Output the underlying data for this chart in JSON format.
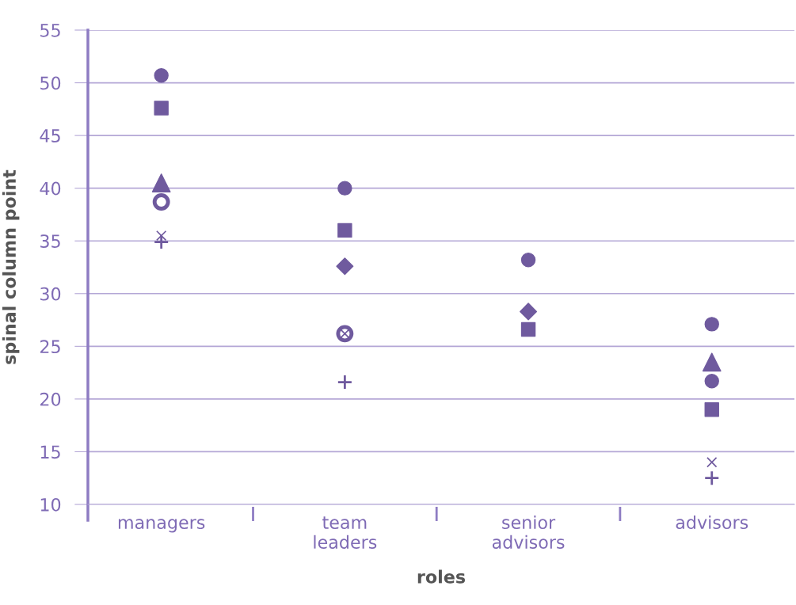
{
  "chart_data": {
    "type": "scatter",
    "xlabel": "roles",
    "ylabel": "spinal column point",
    "categories": [
      "managers",
      "team\nleaders",
      "senior\nadvisors",
      "advisors"
    ],
    "series": [
      {
        "color": "#6f5a9e",
        "marker": "circle",
        "values": [
          50.7,
          40.0,
          33.2,
          27.1
        ]
      },
      {
        "color": "#6f5a9e",
        "marker": "square",
        "values": [
          47.6,
          36.0,
          26.6,
          19.0
        ]
      },
      {
        "color": "#6f5a9e",
        "marker": "triangle",
        "values": [
          40.5,
          null,
          null,
          23.5
        ]
      },
      {
        "color": "#6f5a9e",
        "marker": "diamond",
        "values": [
          null,
          32.6,
          28.3,
          null
        ]
      },
      {
        "color": "#6f5a9e",
        "marker": "o",
        "values": [
          38.7,
          26.2,
          null,
          null
        ]
      },
      {
        "color": "#6f5a9e",
        "marker": "x",
        "values": [
          35.5,
          26.2,
          null,
          14.0
        ]
      },
      {
        "color": "#6f5a9e",
        "marker": "plus",
        "values": [
          34.9,
          21.6,
          null,
          12.5
        ]
      },
      {
        "color": "#6f5a9e",
        "marker": "circle",
        "values": [
          null,
          null,
          null,
          21.7
        ]
      }
    ],
    "ylim": [
      10,
      55
    ],
    "yticks": [
      10,
      15,
      20,
      25,
      30,
      35,
      40,
      45,
      50,
      55
    ],
    "grid": "y"
  }
}
